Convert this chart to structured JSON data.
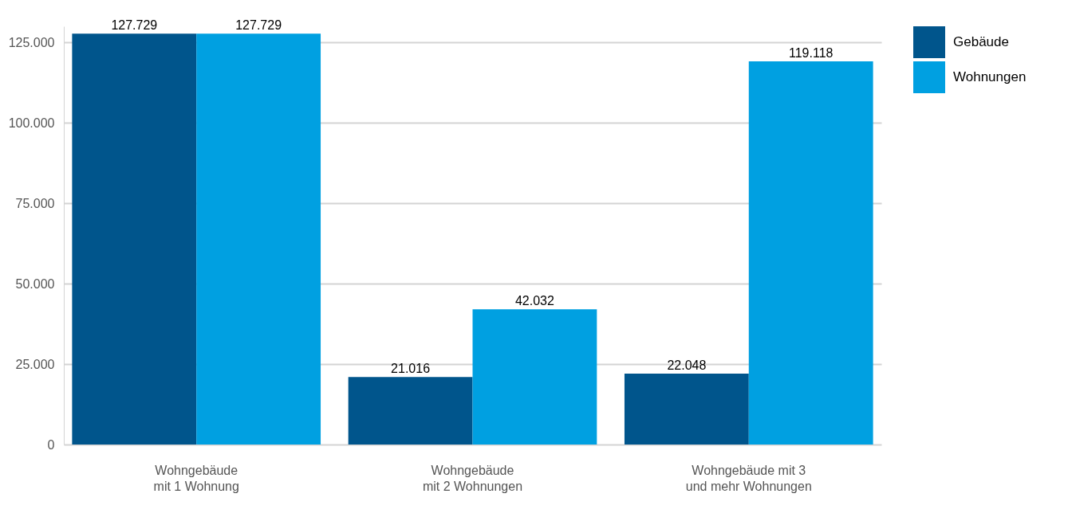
{
  "chart_data": {
    "type": "bar",
    "categories": [
      "Wohngebäude\nmit 1 Wohnung",
      "Wohngebäude\nmit 2 Wohnungen",
      "Wohngebäude mit 3\nund mehr Wohnungen"
    ],
    "series": [
      {
        "name": "Gebäude",
        "color": "#00558c",
        "values": [
          127729,
          21016,
          22048
        ],
        "value_labels": [
          "127.729",
          "21.016",
          "22.048"
        ]
      },
      {
        "name": "Wohnungen",
        "color": "#00a0e1",
        "values": [
          127729,
          42032,
          119118
        ],
        "value_labels": [
          "127.729",
          "42.032",
          "119.118"
        ]
      }
    ],
    "yticks": [
      {
        "value": 0,
        "label": "0"
      },
      {
        "value": 25000,
        "label": "25.000"
      },
      {
        "value": 50000,
        "label": "50.000"
      },
      {
        "value": 75000,
        "label": "75.000"
      },
      {
        "value": 100000,
        "label": "100.000"
      },
      {
        "value": 125000,
        "label": "125.000"
      }
    ],
    "ylim": [
      0,
      130000
    ],
    "grid": "y",
    "legend": "right"
  }
}
